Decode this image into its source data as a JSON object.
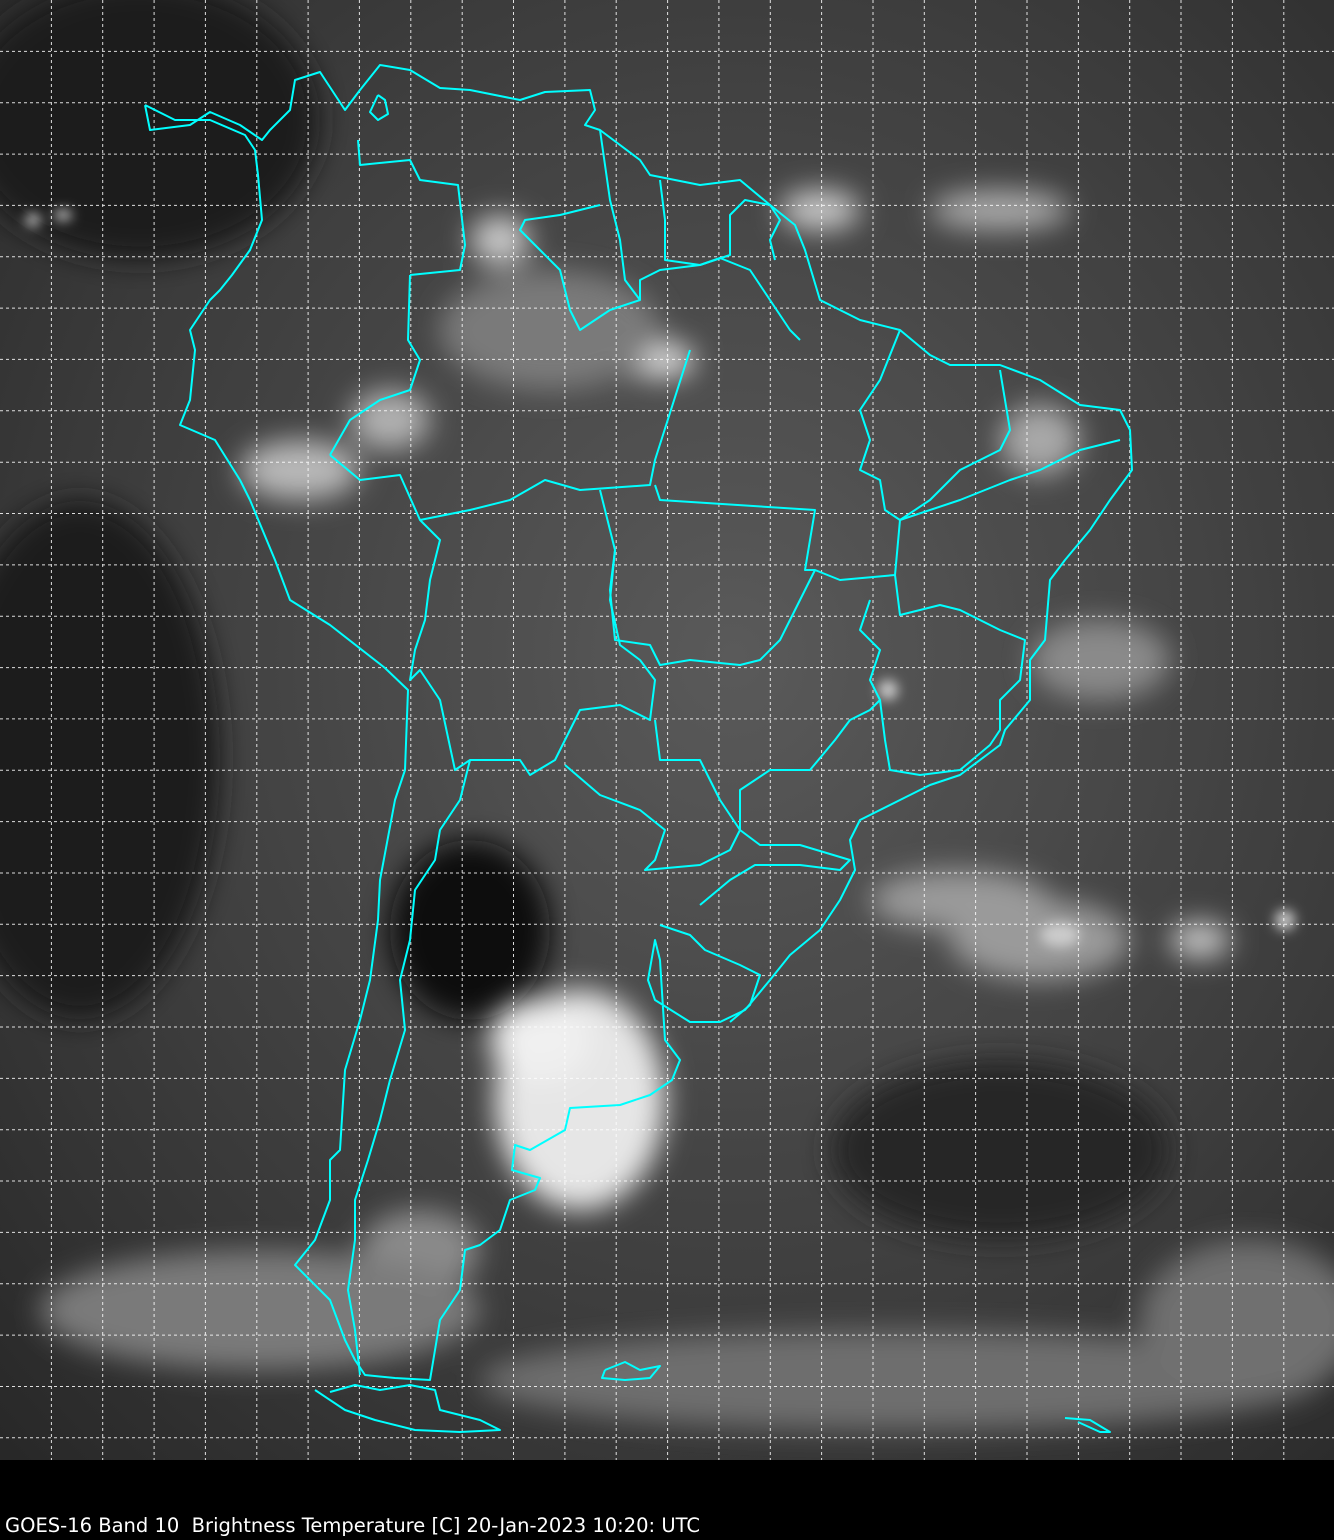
{
  "caption": "GOES-16 Band 10  Brightness Temperature [C] 20-Jan-2023 10:20: UTC",
  "colors": {
    "background": "#000000",
    "coastline": "#00ffff",
    "grid": "#ffffff"
  },
  "map": {
    "imagery": "grayscale infrared satellite image of South America",
    "grid": "dashed lat/lon graticule"
  }
}
